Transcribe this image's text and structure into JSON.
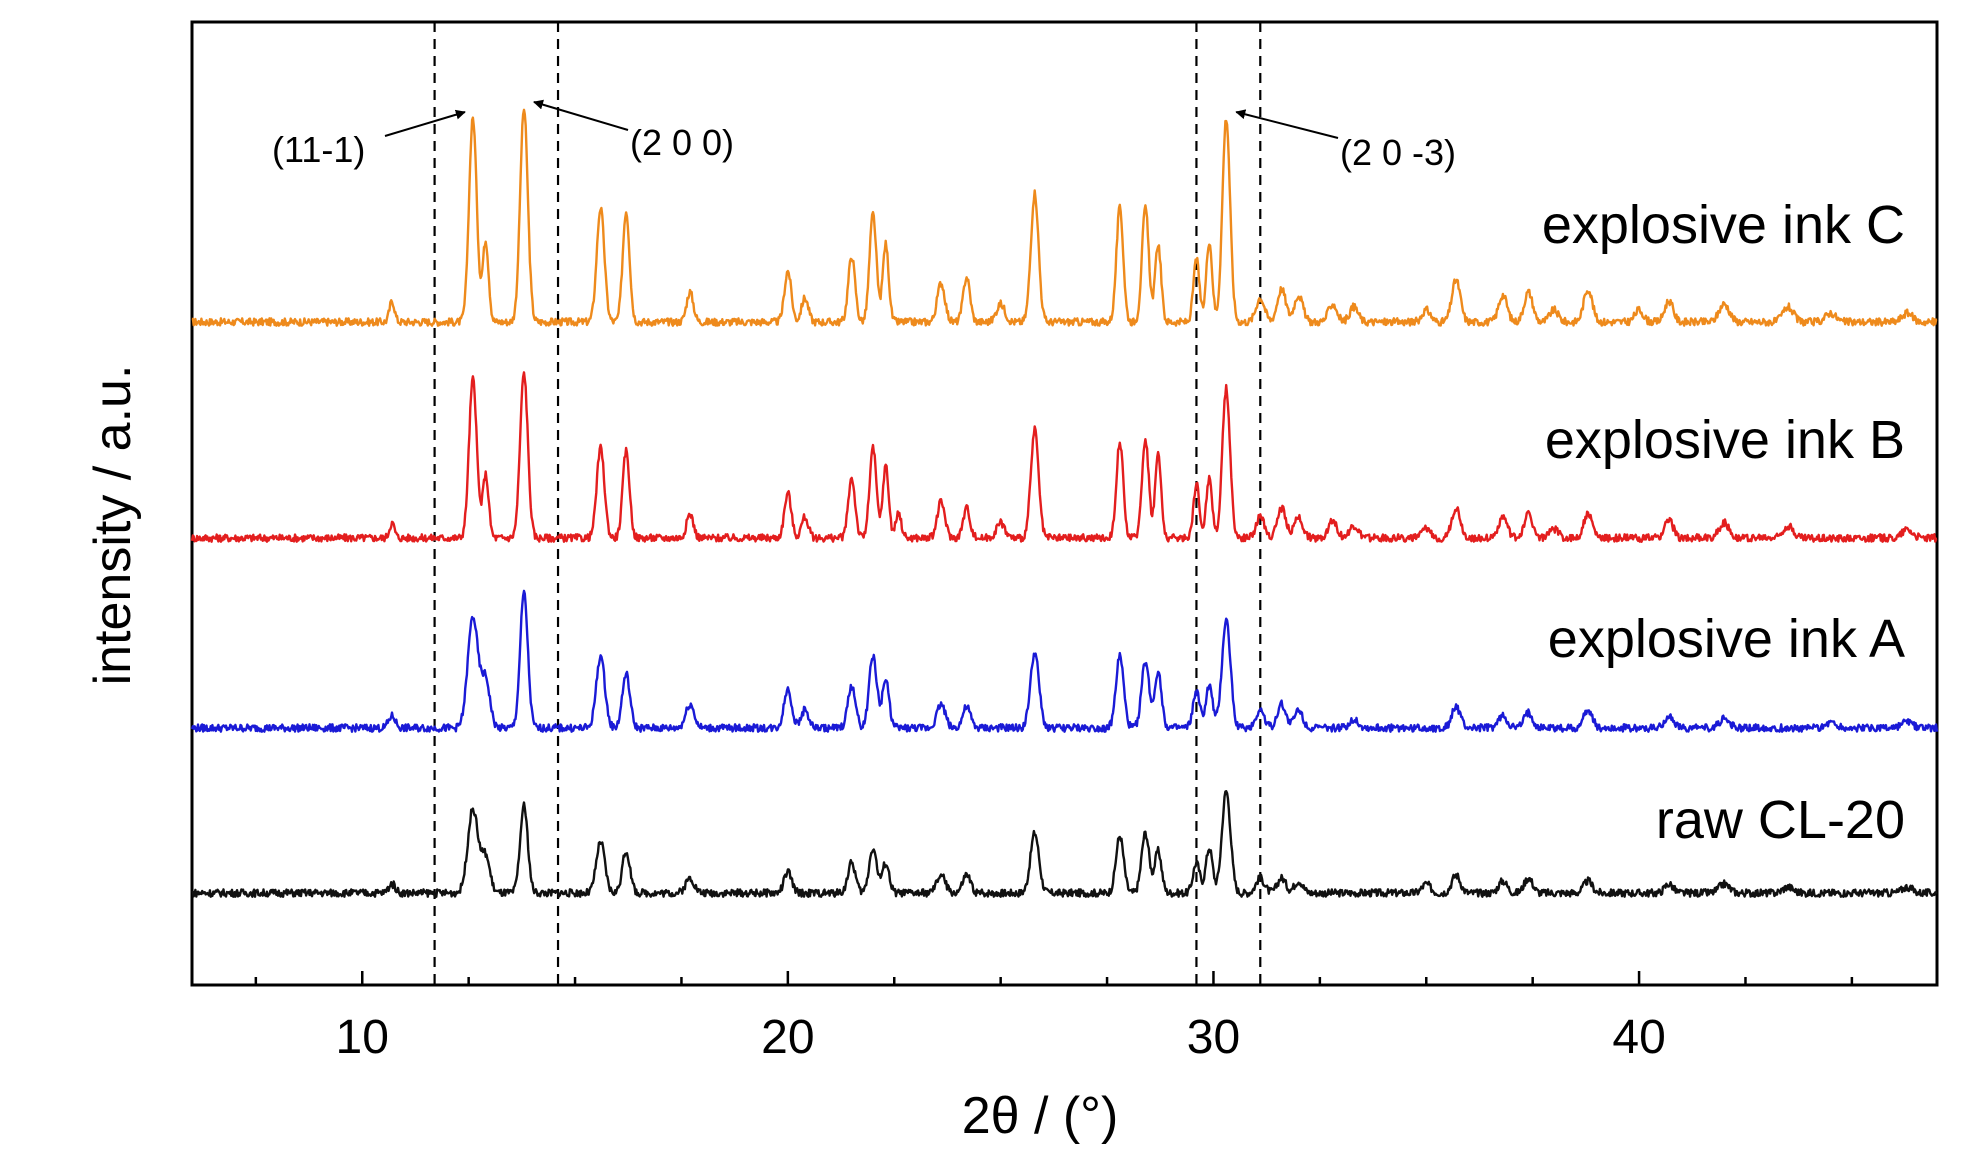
{
  "chart_data": {
    "type": "line",
    "title": "",
    "xlabel": "2θ / (°)",
    "ylabel": "intensity / a.u.",
    "xlim": [
      6,
      47
    ],
    "x_ticks": [
      10,
      20,
      30,
      40
    ],
    "x_tick_labels": [
      "10",
      "20",
      "30",
      "40"
    ],
    "y_ticks": "none",
    "grid": false,
    "legend": "inline labels at right of each trace",
    "reference_lines_x": [
      11.7,
      14.6,
      29.6,
      31.1
    ],
    "annotations": [
      {
        "text": "(11-1)",
        "x": 12.6
      },
      {
        "text": "(2 0 0)",
        "x": 13.8
      },
      {
        "text": "(2 0 -3)",
        "x": 30.3
      }
    ],
    "series": [
      {
        "name": "explosive ink C",
        "color": "#ee8a1c",
        "baseline": 0.0,
        "peaks": [
          [
            10.7,
            0.07,
            0.06
          ],
          [
            12.6,
            0.68,
            0.09
          ],
          [
            12.9,
            0.27,
            0.07
          ],
          [
            13.8,
            0.71,
            0.09
          ],
          [
            15.6,
            0.38,
            0.09
          ],
          [
            16.2,
            0.37,
            0.08
          ],
          [
            17.7,
            0.1,
            0.08
          ],
          [
            20.0,
            0.17,
            0.08
          ],
          [
            20.4,
            0.08,
            0.08
          ],
          [
            21.5,
            0.22,
            0.08
          ],
          [
            22.0,
            0.36,
            0.08
          ],
          [
            22.3,
            0.26,
            0.07
          ],
          [
            23.6,
            0.13,
            0.09
          ],
          [
            24.2,
            0.15,
            0.08
          ],
          [
            25.0,
            0.06,
            0.1
          ],
          [
            25.8,
            0.43,
            0.09
          ],
          [
            27.8,
            0.38,
            0.08
          ],
          [
            28.4,
            0.38,
            0.08
          ],
          [
            28.7,
            0.26,
            0.07
          ],
          [
            29.6,
            0.21,
            0.07
          ],
          [
            29.9,
            0.27,
            0.07
          ],
          [
            30.3,
            0.68,
            0.09
          ],
          [
            31.1,
            0.08,
            0.1
          ],
          [
            31.6,
            0.11,
            0.1
          ],
          [
            32.0,
            0.09,
            0.1
          ],
          [
            32.8,
            0.06,
            0.1
          ],
          [
            33.3,
            0.05,
            0.1
          ],
          [
            35.0,
            0.04,
            0.1
          ],
          [
            35.7,
            0.14,
            0.1
          ],
          [
            36.8,
            0.09,
            0.1
          ],
          [
            37.4,
            0.1,
            0.1
          ],
          [
            38.0,
            0.04,
            0.1
          ],
          [
            38.8,
            0.11,
            0.1
          ],
          [
            40.0,
            0.04,
            0.1
          ],
          [
            40.7,
            0.07,
            0.1
          ],
          [
            42.0,
            0.06,
            0.12
          ],
          [
            43.5,
            0.05,
            0.12
          ],
          [
            44.5,
            0.03,
            0.12
          ],
          [
            46.3,
            0.03,
            0.12
          ]
        ]
      },
      {
        "name": "explosive ink B",
        "color": "#e31e1e",
        "baseline": 0.0,
        "peaks": [
          [
            10.7,
            0.05,
            0.06
          ],
          [
            12.6,
            0.53,
            0.09
          ],
          [
            12.9,
            0.21,
            0.07
          ],
          [
            13.8,
            0.55,
            0.09
          ],
          [
            15.6,
            0.3,
            0.09
          ],
          [
            16.2,
            0.29,
            0.08
          ],
          [
            17.7,
            0.08,
            0.08
          ],
          [
            20.0,
            0.15,
            0.08
          ],
          [
            20.4,
            0.07,
            0.08
          ],
          [
            21.5,
            0.2,
            0.08
          ],
          [
            22.0,
            0.3,
            0.08
          ],
          [
            22.3,
            0.24,
            0.07
          ],
          [
            22.6,
            0.08,
            0.07
          ],
          [
            23.6,
            0.12,
            0.09
          ],
          [
            24.2,
            0.1,
            0.08
          ],
          [
            25.0,
            0.05,
            0.1
          ],
          [
            25.8,
            0.36,
            0.09
          ],
          [
            27.8,
            0.32,
            0.08
          ],
          [
            28.4,
            0.33,
            0.08
          ],
          [
            28.7,
            0.28,
            0.07
          ],
          [
            29.6,
            0.18,
            0.07
          ],
          [
            29.9,
            0.2,
            0.07
          ],
          [
            30.3,
            0.5,
            0.09
          ],
          [
            31.1,
            0.07,
            0.1
          ],
          [
            31.6,
            0.1,
            0.1
          ],
          [
            32.0,
            0.07,
            0.1
          ],
          [
            32.8,
            0.06,
            0.1
          ],
          [
            33.3,
            0.04,
            0.1
          ],
          [
            35.0,
            0.03,
            0.1
          ],
          [
            35.7,
            0.1,
            0.1
          ],
          [
            36.8,
            0.07,
            0.1
          ],
          [
            37.4,
            0.08,
            0.1
          ],
          [
            38.0,
            0.03,
            0.1
          ],
          [
            38.8,
            0.08,
            0.1
          ],
          [
            40.7,
            0.06,
            0.1
          ],
          [
            42.0,
            0.05,
            0.12
          ],
          [
            43.5,
            0.04,
            0.12
          ],
          [
            46.3,
            0.03,
            0.12
          ]
        ]
      },
      {
        "name": "explosive ink A",
        "color": "#1a1ad6",
        "baseline": 0.0,
        "peaks": [
          [
            10.7,
            0.04,
            0.08
          ],
          [
            12.6,
            0.37,
            0.12
          ],
          [
            12.9,
            0.16,
            0.1
          ],
          [
            13.8,
            0.45,
            0.09
          ],
          [
            15.6,
            0.24,
            0.1
          ],
          [
            16.2,
            0.18,
            0.09
          ],
          [
            17.7,
            0.08,
            0.1
          ],
          [
            20.0,
            0.13,
            0.09
          ],
          [
            20.4,
            0.06,
            0.09
          ],
          [
            21.5,
            0.14,
            0.09
          ],
          [
            22.0,
            0.24,
            0.09
          ],
          [
            22.3,
            0.16,
            0.08
          ],
          [
            23.6,
            0.08,
            0.1
          ],
          [
            24.2,
            0.07,
            0.09
          ],
          [
            25.8,
            0.25,
            0.1
          ],
          [
            27.8,
            0.24,
            0.09
          ],
          [
            28.4,
            0.22,
            0.09
          ],
          [
            28.7,
            0.19,
            0.08
          ],
          [
            29.6,
            0.12,
            0.08
          ],
          [
            29.9,
            0.14,
            0.08
          ],
          [
            30.3,
            0.36,
            0.1
          ],
          [
            31.1,
            0.06,
            0.1
          ],
          [
            31.6,
            0.08,
            0.1
          ],
          [
            32.0,
            0.06,
            0.1
          ],
          [
            33.3,
            0.03,
            0.1
          ],
          [
            35.7,
            0.07,
            0.1
          ],
          [
            36.8,
            0.04,
            0.1
          ],
          [
            37.4,
            0.05,
            0.1
          ],
          [
            38.8,
            0.06,
            0.1
          ],
          [
            40.7,
            0.04,
            0.1
          ],
          [
            42.0,
            0.03,
            0.12
          ],
          [
            44.5,
            0.02,
            0.12
          ],
          [
            46.3,
            0.02,
            0.12
          ]
        ]
      },
      {
        "name": "raw CL-20",
        "color": "#111111",
        "baseline": 0.0,
        "peaks": [
          [
            10.7,
            0.03,
            0.08
          ],
          [
            12.6,
            0.28,
            0.12
          ],
          [
            12.9,
            0.12,
            0.1
          ],
          [
            13.8,
            0.29,
            0.09
          ],
          [
            15.6,
            0.17,
            0.1
          ],
          [
            16.2,
            0.14,
            0.09
          ],
          [
            17.7,
            0.05,
            0.1
          ],
          [
            20.0,
            0.07,
            0.09
          ],
          [
            21.5,
            0.1,
            0.09
          ],
          [
            22.0,
            0.15,
            0.09
          ],
          [
            22.3,
            0.1,
            0.08
          ],
          [
            23.6,
            0.06,
            0.1
          ],
          [
            24.2,
            0.06,
            0.09
          ],
          [
            25.8,
            0.2,
            0.1
          ],
          [
            27.8,
            0.19,
            0.09
          ],
          [
            28.4,
            0.2,
            0.09
          ],
          [
            28.7,
            0.14,
            0.08
          ],
          [
            29.6,
            0.1,
            0.08
          ],
          [
            29.9,
            0.15,
            0.08
          ],
          [
            30.3,
            0.34,
            0.1
          ],
          [
            31.1,
            0.05,
            0.1
          ],
          [
            31.6,
            0.05,
            0.1
          ],
          [
            32.0,
            0.04,
            0.1
          ],
          [
            35.0,
            0.03,
            0.1
          ],
          [
            35.7,
            0.06,
            0.1
          ],
          [
            36.8,
            0.04,
            0.1
          ],
          [
            37.4,
            0.05,
            0.1
          ],
          [
            38.8,
            0.04,
            0.1
          ],
          [
            40.7,
            0.03,
            0.1
          ],
          [
            42.0,
            0.03,
            0.12
          ],
          [
            43.5,
            0.02,
            0.12
          ],
          [
            46.3,
            0.02,
            0.12
          ]
        ]
      }
    ]
  }
}
